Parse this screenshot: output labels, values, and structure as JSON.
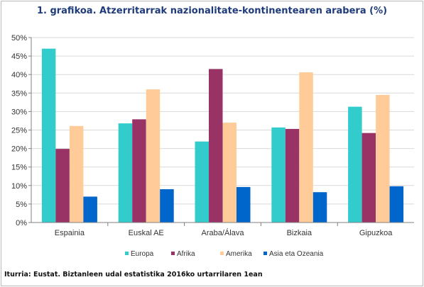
{
  "chart_data": {
    "type": "bar",
    "title": "1. grafikoa. Atzerritarrak nazionalitate-kontinentearen arabera (%)",
    "categories": [
      "Espainia",
      "Euskal AE",
      "Araba/Álava",
      "Bizkaia",
      "Gipuzkoa"
    ],
    "series": [
      {
        "name": "Europa",
        "color": "#33cccc",
        "values": [
          47.0,
          26.8,
          21.9,
          25.7,
          31.3
        ]
      },
      {
        "name": "Afrika",
        "color": "#993366",
        "values": [
          19.9,
          27.9,
          41.5,
          25.3,
          24.2
        ]
      },
      {
        "name": "Amerika",
        "color": "#ffcc99",
        "values": [
          26.1,
          36.0,
          27.0,
          40.6,
          34.5
        ]
      },
      {
        "name": "Asia eta Ozeania",
        "color": "#0066cc",
        "values": [
          7.0,
          9.0,
          9.6,
          8.2,
          9.8
        ]
      }
    ],
    "ylim": [
      0,
      50
    ],
    "yticks": [
      "0%",
      "5%",
      "10%",
      "15%",
      "20%",
      "25%",
      "30%",
      "35%",
      "40%",
      "45%",
      "50%"
    ],
    "ytick_values": [
      0,
      5,
      10,
      15,
      20,
      25,
      30,
      35,
      40,
      45,
      50
    ],
    "grid": true,
    "legend_position": "bottom",
    "source": "Iturria: Eustat. Biztanleen udal estatistika 2016ko urtarrilaren 1ean"
  }
}
